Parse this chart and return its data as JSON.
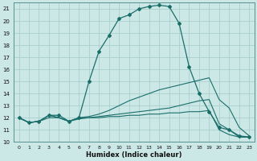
{
  "xlabel": "Humidex (Indice chaleur)",
  "bg_color": "#cce8e6",
  "grid_color": "#aacfcc",
  "line_color": "#1a6e6a",
  "xlim": [
    -0.5,
    23.5
  ],
  "ylim": [
    10,
    21.5
  ],
  "xticks": [
    0,
    1,
    2,
    3,
    4,
    5,
    6,
    7,
    8,
    9,
    10,
    11,
    12,
    13,
    14,
    15,
    16,
    17,
    18,
    19,
    20,
    21,
    22,
    23
  ],
  "yticks": [
    10,
    11,
    12,
    13,
    14,
    15,
    16,
    17,
    18,
    19,
    20,
    21
  ],
  "series1_x": [
    0,
    1,
    2,
    3,
    4,
    5,
    6,
    7,
    8,
    9,
    10,
    11,
    12,
    13,
    14,
    15,
    16,
    17,
    18,
    19,
    20,
    21,
    22,
    23
  ],
  "series1_y": [
    12.0,
    11.6,
    11.7,
    12.2,
    12.2,
    11.7,
    12.0,
    15.0,
    17.5,
    18.8,
    20.2,
    20.5,
    21.0,
    21.2,
    21.3,
    21.2,
    19.8,
    16.2,
    14.0,
    12.5,
    11.2,
    11.0,
    10.5,
    10.4
  ],
  "series2_x": [
    0,
    1,
    2,
    3,
    4,
    5,
    6,
    7,
    8,
    9,
    10,
    11,
    12,
    13,
    14,
    15,
    16,
    17,
    18,
    19,
    20,
    21,
    22,
    23
  ],
  "series2_y": [
    12.0,
    11.6,
    11.7,
    12.2,
    12.0,
    11.7,
    12.0,
    12.1,
    12.3,
    12.6,
    13.0,
    13.4,
    13.7,
    14.0,
    14.3,
    14.5,
    14.7,
    14.9,
    15.1,
    15.3,
    13.5,
    12.8,
    11.2,
    10.5
  ],
  "series3_x": [
    0,
    1,
    2,
    3,
    4,
    5,
    6,
    7,
    8,
    9,
    10,
    11,
    12,
    13,
    14,
    15,
    16,
    17,
    18,
    19,
    20,
    21,
    22,
    23
  ],
  "series3_y": [
    12.0,
    11.6,
    11.7,
    12.2,
    12.0,
    11.7,
    12.0,
    12.0,
    12.1,
    12.2,
    12.3,
    12.4,
    12.5,
    12.6,
    12.7,
    12.8,
    13.0,
    13.2,
    13.4,
    13.5,
    11.5,
    11.0,
    10.4,
    10.4
  ],
  "series4_x": [
    0,
    1,
    2,
    3,
    4,
    5,
    6,
    7,
    8,
    9,
    10,
    11,
    12,
    13,
    14,
    15,
    16,
    17,
    18,
    19,
    20,
    21,
    22,
    23
  ],
  "series4_y": [
    12.0,
    11.6,
    11.7,
    12.0,
    12.0,
    11.7,
    11.9,
    12.0,
    12.0,
    12.1,
    12.1,
    12.2,
    12.2,
    12.3,
    12.3,
    12.4,
    12.4,
    12.5,
    12.5,
    12.6,
    11.0,
    10.6,
    10.4,
    10.4
  ]
}
